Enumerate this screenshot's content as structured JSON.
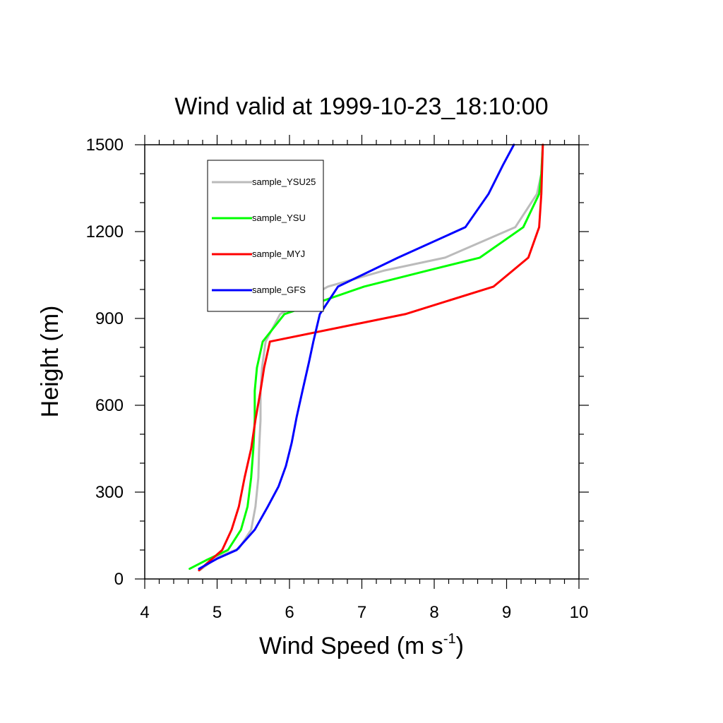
{
  "chart_data": {
    "type": "line",
    "title": "Wind valid at 1999-10-23_18:10:00",
    "xlabel": "Wind Speed (m s",
    "xlabel_sup": "-1",
    "xlabel_close": ")",
    "ylabel": "Height (m)",
    "xlim": [
      4,
      10
    ],
    "ylim": [
      0,
      1500
    ],
    "xticks": [
      4,
      5,
      6,
      7,
      8,
      9,
      10
    ],
    "yticks": [
      0,
      300,
      600,
      900,
      1200,
      1500
    ],
    "xtick_labels": [
      "4",
      "5",
      "6",
      "7",
      "8",
      "9",
      "10"
    ],
    "ytick_labels": [
      "0",
      "300",
      "600",
      "900",
      "1200",
      "1500"
    ],
    "x_minor_step": 0.2,
    "y_minor_step": 100,
    "grid": false,
    "legend_position": "top-left",
    "series": [
      {
        "name": "sample_YSU25",
        "color": "#bbbbbb",
        "points": [
          [
            4.76,
            30
          ],
          [
            5.0,
            75
          ],
          [
            5.3,
            105
          ],
          [
            5.47,
            170
          ],
          [
            5.53,
            250
          ],
          [
            5.57,
            350
          ],
          [
            5.58,
            450
          ],
          [
            5.6,
            550
          ],
          [
            5.6,
            650
          ],
          [
            5.62,
            730
          ],
          [
            5.67,
            820
          ],
          [
            5.87,
            915
          ],
          [
            6.53,
            1010
          ],
          [
            7.3,
            1065
          ],
          [
            8.15,
            1110
          ],
          [
            9.12,
            1215
          ],
          [
            9.42,
            1330
          ],
          [
            9.48,
            1400
          ],
          [
            9.5,
            1500
          ]
        ]
      },
      {
        "name": "sample_YSU",
        "color": "#00ff00",
        "points": [
          [
            4.62,
            35
          ],
          [
            4.85,
            65
          ],
          [
            5.15,
            100
          ],
          [
            5.33,
            170
          ],
          [
            5.42,
            250
          ],
          [
            5.47,
            350
          ],
          [
            5.5,
            450
          ],
          [
            5.52,
            550
          ],
          [
            5.52,
            650
          ],
          [
            5.55,
            730
          ],
          [
            5.63,
            820
          ],
          [
            5.93,
            915
          ],
          [
            7.03,
            1010
          ],
          [
            7.9,
            1065
          ],
          [
            8.63,
            1110
          ],
          [
            9.23,
            1215
          ],
          [
            9.45,
            1330
          ],
          [
            9.48,
            1400
          ],
          [
            9.5,
            1500
          ]
        ]
      },
      {
        "name": "sample_MYJ",
        "color": "#ff0000",
        "points": [
          [
            4.75,
            30
          ],
          [
            5.07,
            100
          ],
          [
            5.2,
            170
          ],
          [
            5.3,
            250
          ],
          [
            5.38,
            350
          ],
          [
            5.47,
            450
          ],
          [
            5.53,
            550
          ],
          [
            5.6,
            650
          ],
          [
            5.65,
            730
          ],
          [
            5.73,
            820
          ],
          [
            7.6,
            915
          ],
          [
            8.82,
            1010
          ],
          [
            9.3,
            1110
          ],
          [
            9.45,
            1215
          ],
          [
            9.48,
            1330
          ],
          [
            9.5,
            1500
          ]
        ]
      },
      {
        "name": "sample_GFS",
        "color": "#0000ff",
        "points": [
          [
            4.75,
            35
          ],
          [
            5.0,
            70
          ],
          [
            5.27,
            100
          ],
          [
            5.52,
            170
          ],
          [
            5.7,
            250
          ],
          [
            5.85,
            320
          ],
          [
            5.95,
            390
          ],
          [
            6.03,
            470
          ],
          [
            6.1,
            560
          ],
          [
            6.18,
            650
          ],
          [
            6.27,
            750
          ],
          [
            6.33,
            820
          ],
          [
            6.42,
            915
          ],
          [
            6.67,
            1010
          ],
          [
            7.5,
            1110
          ],
          [
            8.43,
            1215
          ],
          [
            8.75,
            1330
          ],
          [
            8.95,
            1430
          ],
          [
            9.1,
            1500
          ]
        ]
      }
    ]
  }
}
